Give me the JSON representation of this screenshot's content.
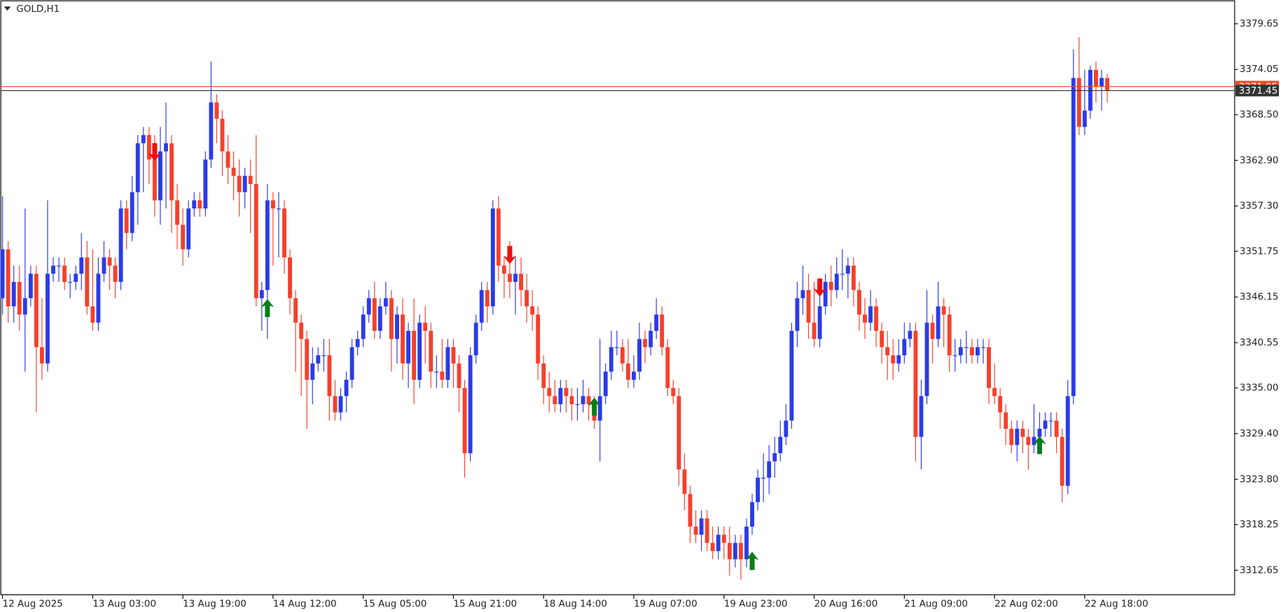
{
  "chart_data": {
    "type": "candlestick",
    "title": "GOLD,H1",
    "bull_color": "#2b3be6",
    "bear_color": "#f5402c",
    "ylim": [
      3309.64,
      3382.46
    ],
    "yticks": [
      3379.65,
      3374.05,
      {
        "value": 3368.5,
        "label": "3368.50"
      },
      {
        "value": 3362.9,
        "label": "3362.90"
      },
      {
        "value": 3357.3,
        "label": "3357.30"
      },
      3351.75,
      3346.15,
      3340.55,
      {
        "value": 3335,
        "label": "3335.00"
      },
      {
        "value": 3329.4,
        "label": "3329.40"
      },
      {
        "value": 3323.8,
        "label": "3323.80"
      },
      3318.25,
      3312.65
    ],
    "xlim": [
      -0.3,
      218.6
    ],
    "xticks": [
      {
        "value": 0,
        "label": "12 Aug 2025"
      },
      {
        "value": 16,
        "label": "13 Aug 03:00"
      },
      {
        "value": 32,
        "label": "13 Aug 19:00"
      },
      {
        "value": 48,
        "label": "14 Aug 12:00"
      },
      {
        "value": 64,
        "label": "15 Aug 05:00"
      },
      {
        "value": 80,
        "label": "15 Aug 21:00"
      },
      {
        "value": 96,
        "label": "18 Aug 14:00"
      },
      {
        "value": 112,
        "label": "19 Aug 07:00"
      },
      {
        "value": 128,
        "label": "19 Aug 23:00"
      },
      {
        "value": 144,
        "label": "20 Aug 16:00"
      },
      {
        "value": 160,
        "label": "21 Aug 09:00"
      },
      {
        "value": 176,
        "label": "22 Aug 02:00"
      },
      {
        "value": 192,
        "label": "22 Aug 18:00"
      }
    ],
    "price_lines": [
      {
        "value": 3371.95,
        "color": "#f04a24"
      },
      {
        "value": 3371.45,
        "color": "#333333"
      }
    ],
    "buy_signals": {
      "color": "#0b7d18",
      "points": [
        [
          47,
          3345.9
        ],
        [
          105,
          3333.8
        ],
        [
          133,
          3314.9
        ],
        [
          184,
          3329.1
        ]
      ]
    },
    "sell_signals": {
      "color": "#ee1111",
      "points": [
        [
          27,
          3362.8
        ],
        [
          90,
          3350.2
        ],
        [
          145,
          3346.2
        ]
      ]
    },
    "candles": [
      [
        3346,
        3358.5,
        3344,
        3352
      ],
      [
        3352,
        3353,
        3343,
        3345
      ],
      [
        3345,
        3350,
        3343,
        3348
      ],
      [
        3348,
        3350,
        3342,
        3344
      ],
      [
        3344,
        3357,
        3337,
        3346
      ],
      [
        3346,
        3350,
        3345,
        3349
      ],
      [
        3349,
        3350,
        3332,
        3340
      ],
      [
        3340,
        3346,
        3336,
        3338
      ],
      [
        3338,
        3358,
        3337,
        3349
      ],
      [
        3349,
        3351,
        3348,
        3350
      ],
      [
        3350,
        3351,
        3348,
        3350
      ],
      [
        3350,
        3351,
        3347,
        3348
      ],
      [
        3348,
        3349,
        3346,
        3348
      ],
      [
        3348,
        3350,
        3347,
        3349
      ],
      [
        3349,
        3354,
        3347,
        3351
      ],
      [
        3351,
        3353,
        3344,
        3345
      ],
      [
        3345,
        3352,
        3342,
        3343
      ],
      [
        3343,
        3351,
        3342,
        3349
      ],
      [
        3349,
        3353,
        3348,
        3351
      ],
      [
        3351,
        3352,
        3347,
        3350
      ],
      [
        3350,
        3351,
        3346,
        3348
      ],
      [
        3348,
        3358,
        3347,
        3357
      ],
      [
        3357,
        3358,
        3352,
        3354
      ],
      [
        3354,
        3361,
        3353,
        3359
      ],
      [
        3359,
        3366,
        3355,
        3365
      ],
      [
        3365,
        3367,
        3359,
        3366
      ],
      [
        3366,
        3367,
        3360,
        3363
      ],
      [
        3363,
        3366,
        3356,
        3358
      ],
      [
        3358,
        3367,
        3355,
        3364
      ],
      [
        3364,
        3370,
        3357,
        3365
      ],
      [
        3365,
        3366,
        3354,
        3358
      ],
      [
        3358,
        3360,
        3352,
        3355
      ],
      [
        3355,
        3357,
        3350,
        3352
      ],
      [
        3352,
        3358,
        3351,
        3357
      ],
      [
        3357,
        3359,
        3356,
        3358
      ],
      [
        3358,
        3359,
        3356,
        3357
      ],
      [
        3357,
        3364,
        3356,
        3363
      ],
      [
        3363,
        3375,
        3362,
        3370
      ],
      [
        3370,
        3371,
        3365,
        3368
      ],
      [
        3368,
        3369,
        3361,
        3364
      ],
      [
        3364,
        3366,
        3360,
        3362
      ],
      [
        3362,
        3364,
        3358,
        3361
      ],
      [
        3361,
        3363,
        3356,
        3359
      ],
      [
        3359,
        3362,
        3357,
        3361
      ],
      [
        3361,
        3363,
        3354,
        3360
      ],
      [
        3360,
        3366,
        3345,
        3346
      ],
      [
        3346,
        3348,
        3342,
        3347
      ],
      [
        3347,
        3360,
        3341,
        3358
      ],
      [
        3358,
        3359,
        3350,
        3357
      ],
      [
        3357,
        3359,
        3351,
        3357
      ],
      [
        3357,
        3358,
        3349,
        3351
      ],
      [
        3351,
        3352,
        3344,
        3346
      ],
      [
        3346,
        3347,
        3337,
        3343
      ],
      [
        3343,
        3344,
        3334,
        3341
      ],
      [
        3341,
        3342,
        3330,
        3336
      ],
      [
        3336,
        3340,
        3333,
        3338
      ],
      [
        3338,
        3340,
        3337,
        3339
      ],
      [
        3339,
        3341,
        3337,
        3339
      ],
      [
        3339,
        3341,
        3331,
        3334
      ],
      [
        3334,
        3336,
        3331,
        3332
      ],
      [
        3332,
        3335,
        3331,
        3334
      ],
      [
        3334,
        3337,
        3332,
        3336
      ],
      [
        3336,
        3341,
        3335,
        3340
      ],
      [
        3340,
        3342,
        3339,
        3341
      ],
      [
        3341,
        3345,
        3340,
        3344
      ],
      [
        3344,
        3347,
        3343,
        3346
      ],
      [
        3346,
        3348,
        3341,
        3342
      ],
      [
        3342,
        3346,
        3341,
        3345
      ],
      [
        3345,
        3348,
        3344,
        3346
      ],
      [
        3346,
        3347,
        3337,
        3341
      ],
      [
        3341,
        3345,
        3338,
        3344
      ],
      [
        3344,
        3346,
        3336,
        3338
      ],
      [
        3338,
        3343,
        3335,
        3342
      ],
      [
        3342,
        3346,
        3333,
        3336
      ],
      [
        3336,
        3344,
        3335,
        3343
      ],
      [
        3343,
        3345,
        3338,
        3342
      ],
      [
        3342,
        3343,
        3335,
        3337
      ],
      [
        3337,
        3339,
        3335,
        3337
      ],
      [
        3337,
        3341,
        3335,
        3336
      ],
      [
        3336,
        3341,
        3335,
        3340
      ],
      [
        3340,
        3341,
        3335,
        3338
      ],
      [
        3338,
        3339,
        3332,
        3335
      ],
      [
        3335,
        3336,
        3324,
        3327
      ],
      [
        3327,
        3340,
        3326,
        3339
      ],
      [
        3339,
        3344,
        3338,
        3343
      ],
      [
        3343,
        3348,
        3342,
        3347
      ],
      [
        3347,
        3348,
        3343,
        3345
      ],
      [
        3345,
        3358,
        3344,
        3357
      ],
      [
        3357,
        3358.5,
        3348,
        3350
      ],
      [
        3350,
        3351,
        3346,
        3349
      ],
      [
        3349,
        3353,
        3346,
        3348
      ],
      [
        3348,
        3351,
        3344,
        3349
      ],
      [
        3349,
        3351,
        3345,
        3347
      ],
      [
        3347,
        3349,
        3343,
        3345
      ],
      [
        3345,
        3347,
        3342,
        3344
      ],
      [
        3344,
        3345,
        3336,
        3338
      ],
      [
        3338,
        3339,
        3333,
        3335
      ],
      [
        3335,
        3337,
        3332,
        3334
      ],
      [
        3334,
        3336,
        3332,
        3333
      ],
      [
        3333,
        3336,
        3332,
        3335
      ],
      [
        3335,
        3336,
        3332,
        3334
      ],
      [
        3334,
        3335,
        3331,
        3333
      ],
      [
        3333,
        3335,
        3331,
        3333
      ],
      [
        3333,
        3336,
        3332,
        3334
      ],
      [
        3334,
        3335,
        3331,
        3333
      ],
      [
        3333,
        3334,
        3330,
        3331
      ],
      [
        3331,
        3341,
        3326,
        3334
      ],
      [
        3334,
        3338,
        3333,
        3337
      ],
      [
        3337,
        3342,
        3336,
        3340
      ],
      [
        3340,
        3342,
        3339,
        3340
      ],
      [
        3340,
        3341,
        3337,
        3338
      ],
      [
        3338,
        3341,
        3335,
        3336
      ],
      [
        3336,
        3339,
        3335,
        3337
      ],
      [
        3337,
        3343,
        3336,
        3341
      ],
      [
        3341,
        3342,
        3338,
        3340
      ],
      [
        3340,
        3343,
        3339,
        3342
      ],
      [
        3342,
        3346,
        3341,
        3344
      ],
      [
        3344,
        3345,
        3339,
        3340
      ],
      [
        3340,
        3341,
        3334,
        3335
      ],
      [
        3335,
        3336,
        3333,
        3334
      ],
      [
        3334,
        3335,
        3323,
        3325
      ],
      [
        3325,
        3327,
        3320,
        3322
      ],
      [
        3322,
        3323,
        3316,
        3318
      ],
      [
        3318,
        3320,
        3316,
        3317
      ],
      [
        3317,
        3320,
        3315,
        3319
      ],
      [
        3319,
        3320,
        3315,
        3316
      ],
      [
        3316,
        3318,
        3314,
        3315
      ],
      [
        3315,
        3318,
        3314,
        3317
      ],
      [
        3317,
        3318,
        3314,
        3316
      ],
      [
        3316,
        3318,
        3312,
        3314
      ],
      [
        3314,
        3317,
        3313,
        3316
      ],
      [
        3316,
        3317,
        3311.5,
        3314
      ],
      [
        3314,
        3319,
        3313,
        3318
      ],
      [
        3318,
        3322,
        3317,
        3321
      ],
      [
        3321,
        3325,
        3320,
        3324
      ],
      [
        3324,
        3327,
        3321,
        3324
      ],
      [
        3324,
        3328,
        3322,
        3326
      ],
      [
        3326,
        3329,
        3324,
        3327
      ],
      [
        3327,
        3331,
        3326,
        3329
      ],
      [
        3329,
        3333,
        3328,
        3331
      ],
      [
        3331,
        3343,
        3330,
        3342
      ],
      [
        3342,
        3348,
        3340,
        3346
      ],
      [
        3346,
        3350,
        3344,
        3347
      ],
      [
        3347,
        3349,
        3341,
        3343
      ],
      [
        3343,
        3348,
        3340,
        3341
      ],
      [
        3341,
        3348,
        3340,
        3345
      ],
      [
        3345,
        3349,
        3344,
        3348
      ],
      [
        3348,
        3350,
        3345,
        3347
      ],
      [
        3347,
        3351,
        3346,
        3349
      ],
      [
        3349,
        3352,
        3347,
        3349
      ],
      [
        3349,
        3351,
        3346,
        3350
      ],
      [
        3350,
        3351,
        3345,
        3347
      ],
      [
        3347,
        3348,
        3342,
        3344
      ],
      [
        3344,
        3346,
        3341,
        3343
      ],
      [
        3343,
        3347,
        3342,
        3345
      ],
      [
        3345,
        3346,
        3340,
        3342
      ],
      [
        3342,
        3343,
        3338,
        3340
      ],
      [
        3340,
        3342,
        3336,
        3339
      ],
      [
        3339,
        3341,
        3336,
        3338
      ],
      [
        3338,
        3341,
        3337,
        3339
      ],
      [
        3339,
        3343,
        3338,
        3341
      ],
      [
        3341,
        3343,
        3340,
        3342
      ],
      [
        3342,
        3343,
        3326,
        3329
      ],
      [
        3329,
        3336,
        3325,
        3334
      ],
      [
        3334,
        3347,
        3333,
        3343
      ],
      [
        3343,
        3344,
        3338,
        3341
      ],
      [
        3341,
        3348,
        3340,
        3345
      ],
      [
        3345,
        3346,
        3340,
        3344
      ],
      [
        3344,
        3345,
        3337,
        3339
      ],
      [
        3339,
        3341,
        3337,
        3339
      ],
      [
        3339,
        3341,
        3338,
        3340
      ],
      [
        3340,
        3342,
        3338,
        3340
      ],
      [
        3340,
        3341,
        3338,
        3339
      ],
      [
        3339,
        3341,
        3338,
        3340
      ],
      [
        3340,
        3341,
        3338,
        3340
      ],
      [
        3340,
        3341,
        3333,
        3335
      ],
      [
        3335,
        3338,
        3333,
        3334
      ],
      [
        3334,
        3335,
        3330,
        3332
      ],
      [
        3332,
        3333,
        3328,
        3330
      ],
      [
        3330,
        3331,
        3327,
        3328
      ],
      [
        3328,
        3331,
        3326,
        3330
      ],
      [
        3330,
        3331,
        3327,
        3329
      ],
      [
        3329,
        3330,
        3325,
        3328
      ],
      [
        3328,
        3333,
        3327,
        3329
      ],
      [
        3329,
        3332,
        3328,
        3330
      ],
      [
        3330,
        3332,
        3329,
        3331
      ],
      [
        3331,
        3332,
        3329,
        3331
      ],
      [
        3331,
        3332,
        3327,
        3329
      ],
      [
        3329,
        3330,
        3321,
        3323
      ],
      [
        3323,
        3336,
        3322,
        3334
      ],
      [
        3334,
        3376.5,
        3333,
        3373
      ],
      [
        3373,
        3378,
        3366,
        3367
      ],
      [
        3367,
        3374,
        3366,
        3369
      ],
      [
        3369,
        3374.5,
        3368,
        3374
      ],
      [
        3374,
        3375,
        3370,
        3372
      ],
      [
        3372,
        3374,
        3369,
        3373
      ],
      [
        3373,
        3373.5,
        3370,
        3371.45
      ]
    ]
  }
}
